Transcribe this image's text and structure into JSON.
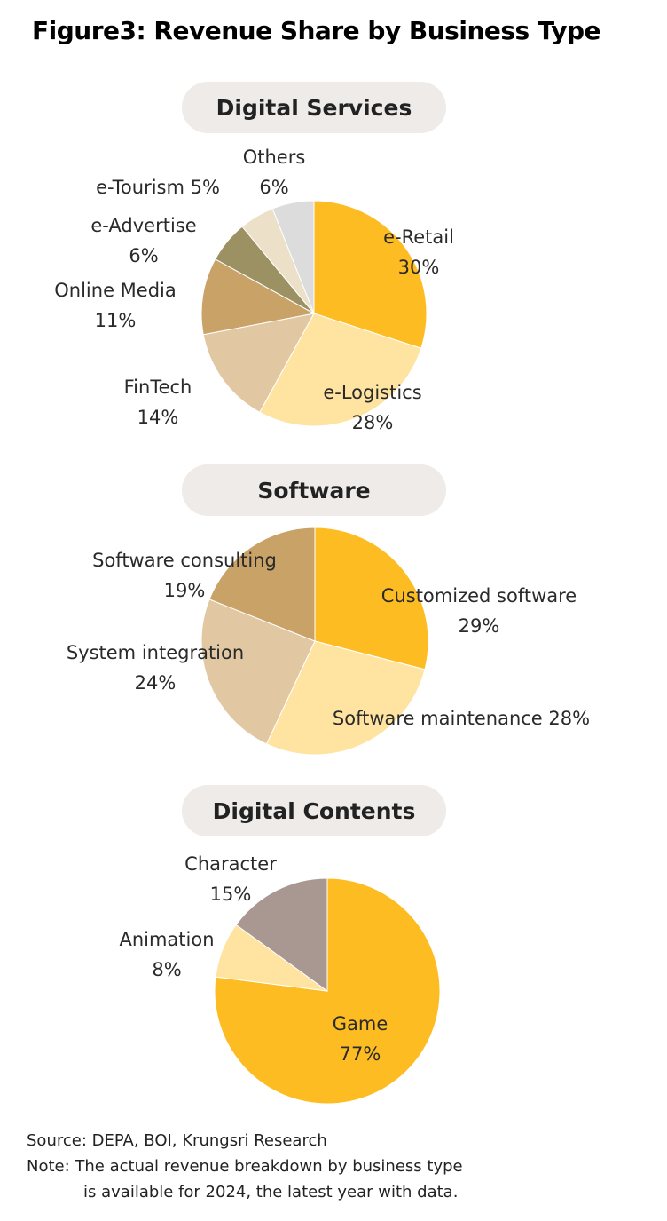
{
  "figure": {
    "title": "Figure3: Revenue Share by Business Type",
    "source": "Source: DEPA, BOI, Krungsri Research",
    "note_line1": "Note: The actual revenue breakdown by business type",
    "note_line2": "is available for 2024, the latest year with data."
  },
  "chart_data": [
    {
      "type": "pie",
      "title": "Digital Services",
      "unit": "%",
      "slices": [
        {
          "label": "e-Retail",
          "value": 30,
          "color": "#fdbd22"
        },
        {
          "label": "e-Logistics",
          "value": 28,
          "color": "#fee4a0"
        },
        {
          "label": "FinTech",
          "value": 14,
          "color": "#e1c8a2"
        },
        {
          "label": "Online Media",
          "value": 11,
          "color": "#c9a267"
        },
        {
          "label": "e-Advertise",
          "value": 6,
          "color": "#9b9163"
        },
        {
          "label": "e-Tourism",
          "value": 5,
          "color": "#ece0c8"
        },
        {
          "label": "Others",
          "value": 6,
          "color": "#dcdcdc"
        }
      ]
    },
    {
      "type": "pie",
      "title": "Software",
      "unit": "%",
      "slices": [
        {
          "label": "Customized software",
          "value": 29,
          "color": "#fdbd22"
        },
        {
          "label": "Software maintenance",
          "value": 28,
          "color": "#fee4a0"
        },
        {
          "label": "System integration",
          "value": 24,
          "color": "#e1c8a2"
        },
        {
          "label": "Software consulting",
          "value": 19,
          "color": "#c9a267"
        }
      ]
    },
    {
      "type": "pie",
      "title": "Digital Contents",
      "unit": "%",
      "slices": [
        {
          "label": "Game",
          "value": 77,
          "color": "#fdbd22"
        },
        {
          "label": "Animation",
          "value": 8,
          "color": "#fee4a0"
        },
        {
          "label": "Character",
          "value": 15,
          "color": "#a99791"
        }
      ]
    }
  ]
}
